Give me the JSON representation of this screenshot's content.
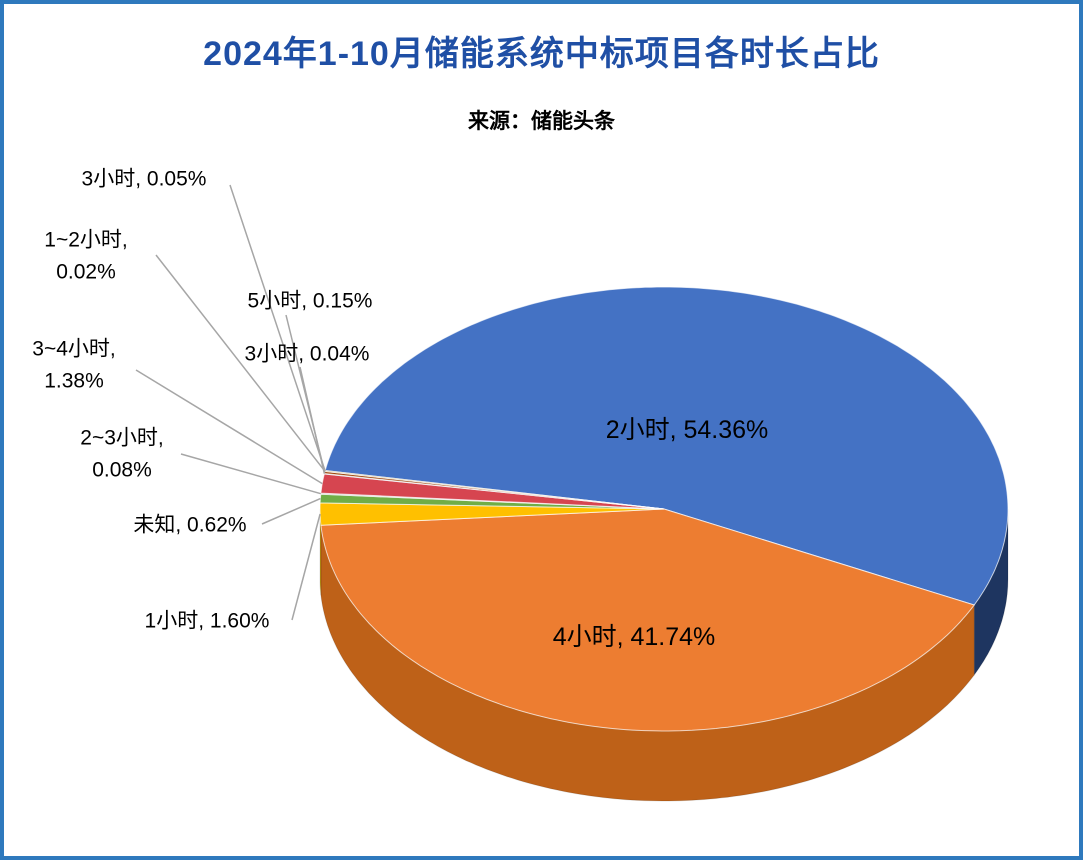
{
  "page": {
    "border_color": "#2E79BD",
    "background": "#FFFFFF"
  },
  "header": {
    "title": "2024年1-10月储能系统中标项目各时长占比",
    "title_color": "#1F4FA5",
    "subtitle": "来源：储能头条"
  },
  "chart_data": {
    "type": "pie",
    "style": "3d",
    "title": "2024年1-10月储能系统中标项目各时长占比",
    "source": "来源：储能头条",
    "legend": "none",
    "labels_style": "category name + percent; large slices labeled inside, small slices use gray leader-line callouts on the left",
    "leader_line_color": "#A6A6A6",
    "start_angle_deg": 170,
    "slices": [
      {
        "label": "2小时",
        "value_pct": 54.36,
        "pct_text": "54.36%",
        "color": "#4472C4",
        "side_color": "#1E3560",
        "label_inside": true
      },
      {
        "label": "4小时",
        "value_pct": 41.74,
        "pct_text": "41.74%",
        "color": "#ED7D31",
        "side_color": "#BE6118",
        "label_inside": true
      },
      {
        "label": "1小时",
        "value_pct": 1.6,
        "pct_text": "1.60%",
        "color": "#FFC000",
        "side_color": "#BF9000",
        "label_inside": false
      },
      {
        "label": "未知",
        "value_pct": 0.62,
        "pct_text": "0.62%",
        "color": "#70AD47",
        "side_color": "#548235",
        "label_inside": false
      },
      {
        "label": "2~3小时",
        "value_pct": 0.08,
        "pct_text": "0.08%",
        "color": "#A5A5A5",
        "side_color": "#7B7B7B",
        "label_inside": false
      },
      {
        "label": "3~4小时",
        "value_pct": 1.38,
        "pct_text": "1.38%",
        "color": "#D64550",
        "side_color": "#A33039",
        "label_inside": false
      },
      {
        "label": "3小时",
        "value_pct": 0.04,
        "pct_text": "0.04%",
        "color": "#5B9BD5",
        "side_color": "#41719C",
        "label_inside": false
      },
      {
        "label": "5小时",
        "value_pct": 0.15,
        "pct_text": "0.15%",
        "color": "#9E480E",
        "side_color": "#6B3009",
        "label_inside": false
      },
      {
        "label": "1~2小时",
        "value_pct": 0.02,
        "pct_text": "0.02%",
        "color": "#636363",
        "side_color": "#424242",
        "label_inside": false
      },
      {
        "label": "3小时",
        "value_pct": 0.05,
        "pct_text": "0.05%",
        "color": "#997300",
        "side_color": "#6B5000",
        "label_inside": false
      }
    ]
  }
}
